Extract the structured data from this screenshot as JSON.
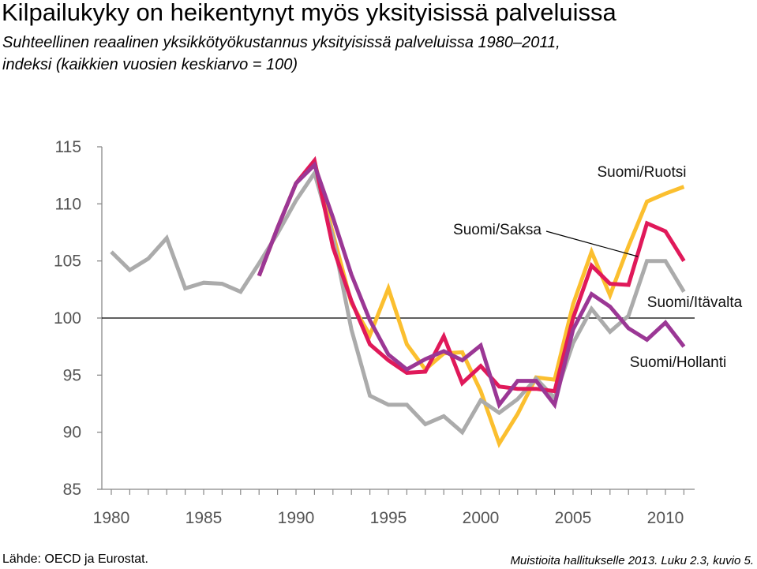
{
  "title": "Kilpailukyky on heikentynyt myös yksityisissä palveluissa",
  "subtitle_line1": "Suhteellinen reaalinen yksikkötyökustannus yksityisissä palveluissa 1980–2011,",
  "subtitle_line2": "indeksi (kaikkien vuosien keskiarvo = 100)",
  "source": "Lähde: OECD ja Eurostat.",
  "note": "Muistioita hallitukselle 2013. Luku 2.3, kuvio 5.",
  "chart_data": {
    "type": "line",
    "xlim": [
      1979,
      2011.5
    ],
    "ylim": [
      85,
      115
    ],
    "yticks": [
      85,
      90,
      95,
      100,
      105,
      110,
      115
    ],
    "xticks": [
      1980,
      1985,
      1990,
      1995,
      2000,
      2005,
      2010
    ],
    "reference_line": 100,
    "series": [
      {
        "name": "Suomi/Ruotsi",
        "color": "#FBBF2F",
        "x": [
          1988,
          1989,
          1990,
          1991,
          1992,
          1993,
          1994,
          1995,
          1996,
          1997,
          1998,
          1999,
          2000,
          2001,
          2002,
          2003,
          2004,
          2005,
          2006,
          2007,
          2008,
          2009,
          2010,
          2011
        ],
        "y": [
          103.7,
          107.9,
          111.8,
          113.7,
          107.4,
          101.3,
          98.5,
          102.6,
          97.7,
          95.5,
          96.9,
          97.0,
          93.6,
          89.0,
          91.6,
          94.8,
          94.6,
          101.2,
          105.8,
          102.0,
          106.3,
          110.2,
          110.9,
          111.5
        ]
      },
      {
        "name": "Suomi/Saksa",
        "color": "#E0195A",
        "x": [
          1988,
          1989,
          1990,
          1991,
          1992,
          1993,
          1994,
          1995,
          1996,
          1997,
          1998,
          1999,
          2000,
          2001,
          2002,
          2003,
          2004,
          2005,
          2006,
          2007,
          2008,
          2009,
          2010,
          2011
        ],
        "y": [
          103.7,
          107.9,
          111.8,
          113.8,
          106.2,
          101.5,
          97.7,
          96.3,
          95.2,
          95.3,
          98.4,
          94.3,
          95.8,
          94.0,
          93.8,
          93.8,
          93.6,
          100.0,
          104.6,
          103.0,
          102.9,
          108.3,
          107.6,
          105.0
        ]
      },
      {
        "name": "Suomi/Itävalta",
        "color": "#9B3795",
        "x": [
          1988,
          1989,
          1990,
          1991,
          1992,
          1993,
          1994,
          1995,
          1996,
          1997,
          1998,
          1999,
          2000,
          2001,
          2002,
          2003,
          2004,
          2005,
          2006,
          2007,
          2008,
          2009,
          2010,
          2011
        ],
        "y": [
          103.7,
          107.9,
          111.8,
          113.4,
          108.8,
          103.8,
          99.8,
          96.8,
          95.5,
          96.4,
          97.1,
          96.3,
          97.6,
          92.4,
          94.5,
          94.5,
          92.4,
          99.0,
          102.1,
          101.0,
          99.1,
          98.1,
          99.6,
          97.5
        ]
      },
      {
        "name": "Suomi/Hollanti",
        "color": "#ABABAB",
        "x": [
          1980,
          1981,
          1982,
          1983,
          1984,
          1985,
          1986,
          1987,
          1988,
          1989,
          1990,
          1991,
          1992,
          1993,
          1994,
          1995,
          1996,
          1997,
          1998,
          1999,
          2000,
          2001,
          2002,
          2003,
          2004,
          2005,
          2006,
          2007,
          2008,
          2009,
          2010,
          2011
        ],
        "y": [
          105.8,
          104.2,
          105.2,
          107.0,
          102.6,
          103.1,
          103.0,
          102.3,
          104.8,
          107.4,
          110.3,
          112.7,
          107.1,
          99.0,
          93.2,
          92.4,
          92.4,
          90.7,
          91.4,
          90.0,
          92.8,
          91.7,
          92.9,
          94.7,
          93.0,
          97.8,
          100.8,
          98.8,
          100.2,
          105.0,
          105.0,
          102.3
        ]
      }
    ]
  }
}
